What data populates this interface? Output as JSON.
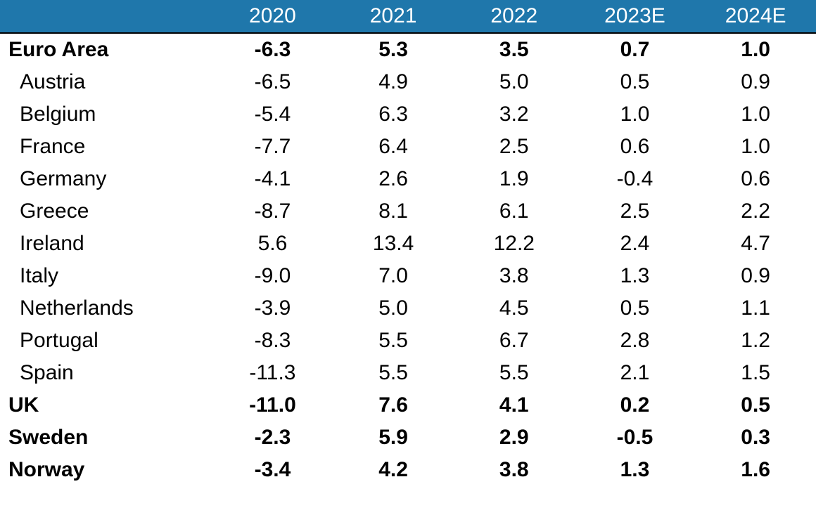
{
  "table": {
    "type": "table",
    "header_bg": "#1f77ab",
    "header_fg": "#ffffff",
    "font_family": "Arial, Helvetica, sans-serif",
    "font_size_pt": 22,
    "columns": [
      "",
      "2020",
      "2021",
      "2022",
      "2023E",
      "2024E"
    ],
    "column_align": [
      "left",
      "center",
      "center",
      "center",
      "center",
      "center"
    ],
    "rows": [
      {
        "label": "Euro Area",
        "bold": true,
        "indent": false,
        "values": [
          "-6.3",
          "5.3",
          "3.5",
          "0.7",
          "1.0"
        ]
      },
      {
        "label": "Austria",
        "bold": false,
        "indent": true,
        "values": [
          "-6.5",
          "4.9",
          "5.0",
          "0.5",
          "0.9"
        ]
      },
      {
        "label": "Belgium",
        "bold": false,
        "indent": true,
        "values": [
          "-5.4",
          "6.3",
          "3.2",
          "1.0",
          "1.0"
        ]
      },
      {
        "label": "France",
        "bold": false,
        "indent": true,
        "values": [
          "-7.7",
          "6.4",
          "2.5",
          "0.6",
          "1.0"
        ]
      },
      {
        "label": "Germany",
        "bold": false,
        "indent": true,
        "values": [
          "-4.1",
          "2.6",
          "1.9",
          "-0.4",
          "0.6"
        ]
      },
      {
        "label": "Greece",
        "bold": false,
        "indent": true,
        "values": [
          "-8.7",
          "8.1",
          "6.1",
          "2.5",
          "2.2"
        ]
      },
      {
        "label": "Ireland",
        "bold": false,
        "indent": true,
        "values": [
          "5.6",
          "13.4",
          "12.2",
          "2.4",
          "4.7"
        ]
      },
      {
        "label": "Italy",
        "bold": false,
        "indent": true,
        "values": [
          "-9.0",
          "7.0",
          "3.8",
          "1.3",
          "0.9"
        ]
      },
      {
        "label": "Netherlands",
        "bold": false,
        "indent": true,
        "values": [
          "-3.9",
          "5.0",
          "4.5",
          "0.5",
          "1.1"
        ]
      },
      {
        "label": "Portugal",
        "bold": false,
        "indent": true,
        "values": [
          "-8.3",
          "5.5",
          "6.7",
          "2.8",
          "1.2"
        ]
      },
      {
        "label": "Spain",
        "bold": false,
        "indent": true,
        "values": [
          "-11.3",
          "5.5",
          "5.5",
          "2.1",
          "1.5"
        ]
      },
      {
        "label": "UK",
        "bold": true,
        "indent": false,
        "values": [
          "-11.0",
          "7.6",
          "4.1",
          "0.2",
          "0.5"
        ]
      },
      {
        "label": "Sweden",
        "bold": true,
        "indent": false,
        "values": [
          "-2.3",
          "5.9",
          "2.9",
          "-0.5",
          "0.3"
        ]
      },
      {
        "label": "Norway",
        "bold": true,
        "indent": false,
        "values": [
          "-3.4",
          "4.2",
          "3.8",
          "1.3",
          "1.6"
        ]
      }
    ]
  }
}
